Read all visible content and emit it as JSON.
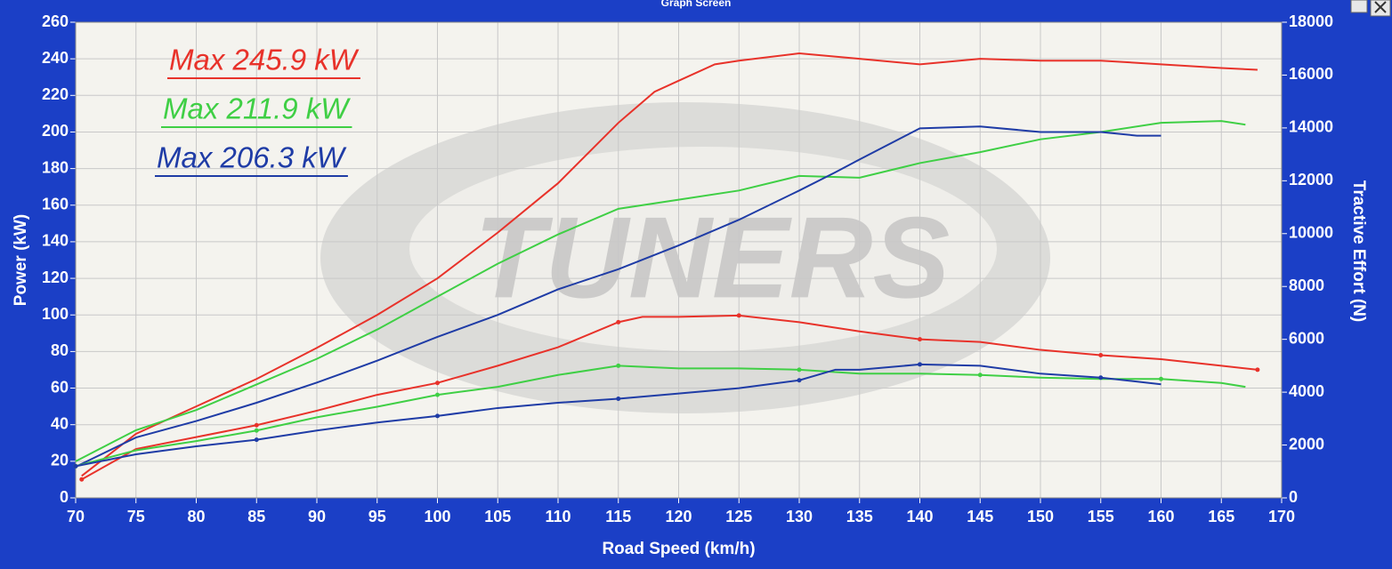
{
  "window_title": "Graph Screen",
  "chart_data": {
    "type": "line",
    "xlabel": "Road Speed (km/h)",
    "ylabel": "Power (kW)",
    "y2label": "Tractive Effort (N)",
    "watermark": "TUNERS",
    "xlim": [
      70,
      170
    ],
    "xticks": [
      70,
      75,
      80,
      85,
      90,
      95,
      100,
      105,
      110,
      115,
      120,
      125,
      130,
      135,
      140,
      145,
      150,
      155,
      160,
      165,
      170
    ],
    "ylim": [
      0,
      260
    ],
    "yticks": [
      0,
      20,
      40,
      60,
      80,
      100,
      120,
      140,
      160,
      180,
      200,
      220,
      240,
      260
    ],
    "y2lim": [
      0,
      18000
    ],
    "y2ticks": [
      0,
      2000,
      4000,
      6000,
      8000,
      10000,
      12000,
      14000,
      16000,
      18000
    ],
    "grid": true,
    "annotations": [
      {
        "text": "Max 245.9 kW",
        "color": "#e8322a"
      },
      {
        "text": "Max 211.9 kW",
        "color": "#3fcf45"
      },
      {
        "text": "Max 206.3 kW",
        "color": "#1f3ca6"
      }
    ],
    "series": [
      {
        "color": "#e8322a",
        "x": [
          70.5,
          75,
          80,
          85,
          90,
          95,
          100,
          105,
          110,
          115,
          118,
          120,
          123,
          125,
          130,
          135,
          140,
          145,
          150,
          155,
          160,
          165,
          168
        ],
        "values": [
          12,
          35,
          50,
          65,
          82,
          100,
          120,
          145,
          172,
          205,
          222,
          228,
          237,
          239,
          243,
          240,
          237,
          240,
          239,
          239,
          237,
          235,
          234
        ]
      },
      {
        "color": "#3fcf45",
        "x": [
          70,
          75,
          80,
          85,
          90,
          95,
          100,
          105,
          110,
          115,
          120,
          125,
          130,
          135,
          140,
          145,
          150,
          155,
          160,
          165,
          167
        ],
        "values": [
          20,
          37,
          48,
          62,
          76,
          92,
          110,
          128,
          144,
          158,
          163,
          168,
          176,
          175,
          183,
          189,
          196,
          200,
          205,
          206,
          204
        ]
      },
      {
        "color": "#1f3ca6",
        "x": [
          70,
          75,
          80,
          85,
          90,
          95,
          100,
          105,
          110,
          115,
          120,
          125,
          130,
          133,
          135,
          140,
          145,
          150,
          155,
          158,
          160
        ],
        "values": [
          17,
          33,
          42,
          52,
          63,
          75,
          88,
          100,
          114,
          125,
          138,
          152,
          168,
          178,
          185,
          202,
          203,
          200,
          200,
          198,
          198
        ]
      },
      {
        "color": "#e8322a",
        "axis": "y2",
        "x": [
          70.5,
          75,
          80,
          85,
          90,
          95,
          100,
          105,
          110,
          115,
          117,
          120,
          125,
          130,
          135,
          140,
          145,
          150,
          155,
          160,
          165,
          168
        ],
        "values": [
          700,
          1850,
          2300,
          2750,
          3300,
          3900,
          4350,
          5000,
          5700,
          6650,
          6850,
          6850,
          6900,
          6650,
          6300,
          6000,
          5900,
          5600,
          5400,
          5250,
          5000,
          4850
        ]
      },
      {
        "color": "#3fcf45",
        "axis": "y2",
        "x": [
          70,
          75,
          80,
          85,
          90,
          95,
          100,
          105,
          110,
          115,
          120,
          125,
          130,
          135,
          140,
          145,
          150,
          155,
          160,
          165,
          167
        ],
        "values": [
          1200,
          1800,
          2150,
          2550,
          3050,
          3450,
          3900,
          4200,
          4650,
          5000,
          4900,
          4900,
          4850,
          4700,
          4700,
          4650,
          4550,
          4500,
          4500,
          4350,
          4200
        ]
      },
      {
        "color": "#1f3ca6",
        "axis": "y2",
        "x": [
          70,
          75,
          80,
          85,
          90,
          95,
          100,
          105,
          110,
          115,
          120,
          125,
          130,
          133,
          135,
          140,
          145,
          150,
          155,
          160
        ],
        "values": [
          1200,
          1650,
          1950,
          2200,
          2550,
          2850,
          3100,
          3400,
          3600,
          3750,
          3950,
          4150,
          4450,
          4850,
          4850,
          5050,
          5000,
          4700,
          4550,
          4300
        ]
      }
    ]
  }
}
